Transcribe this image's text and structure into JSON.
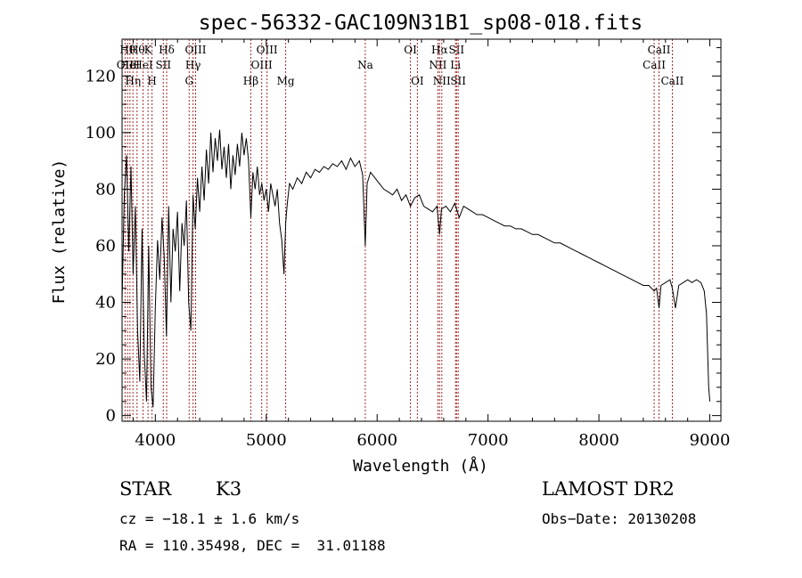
{
  "chart_data": {
    "type": "line",
    "title": "spec-56332-GAC109N31B1_sp08-018.fits",
    "xlabel": "Wavelength (Å)",
    "ylabel": "Flux (relative)",
    "xlim": [
      3700,
      9100
    ],
    "ylim": [
      -2,
      133
    ],
    "xticks": [
      4000,
      5000,
      6000,
      7000,
      8000,
      9000
    ],
    "yticks": [
      0,
      20,
      40,
      60,
      80,
      100,
      120
    ],
    "grid": false,
    "line_color": "#000000",
    "marker_color": "#a52a2a",
    "series": [
      {
        "x": [
          3700,
          3720,
          3740,
          3760,
          3780,
          3800,
          3820,
          3840,
          3860,
          3880,
          3900,
          3920,
          3940,
          3960,
          3980,
          4000,
          4020,
          4040,
          4060,
          4080,
          4100,
          4120,
          4140,
          4160,
          4180,
          4200,
          4220,
          4240,
          4260,
          4280,
          4300,
          4320,
          4340,
          4360,
          4380,
          4400,
          4420,
          4440,
          4460,
          4480,
          4500,
          4520,
          4540,
          4560,
          4580,
          4600,
          4620,
          4640,
          4660,
          4680,
          4700,
          4720,
          4740,
          4760,
          4780,
          4800,
          4820,
          4840,
          4861,
          4880,
          4900,
          4920,
          4940,
          4960,
          4980,
          5000,
          5020,
          5040,
          5060,
          5080,
          5100,
          5120,
          5140,
          5160,
          5175,
          5190,
          5210,
          5240,
          5280,
          5320,
          5360,
          5400,
          5440,
          5480,
          5520,
          5560,
          5600,
          5640,
          5680,
          5720,
          5760,
          5800,
          5840,
          5870,
          5893,
          5910,
          5940,
          5980,
          6020,
          6060,
          6100,
          6140,
          6180,
          6220,
          6260,
          6300,
          6340,
          6380,
          6420,
          6460,
          6500,
          6540,
          6563,
          6580,
          6620,
          6660,
          6700,
          6740,
          6780,
          6820,
          6860,
          6900,
          6950,
          7000,
          7050,
          7100,
          7150,
          7200,
          7250,
          7300,
          7350,
          7400,
          7450,
          7500,
          7550,
          7600,
          7650,
          7700,
          7750,
          7800,
          7850,
          7900,
          7950,
          8000,
          8050,
          8100,
          8150,
          8200,
          8250,
          8300,
          8350,
          8400,
          8450,
          8498,
          8520,
          8542,
          8560,
          8600,
          8640,
          8662,
          8690,
          8720,
          8760,
          8800,
          8840,
          8880,
          8920,
          8950,
          8970,
          8990,
          9000
        ],
        "y": [
          40,
          78,
          92,
          58,
          88,
          50,
          74,
          30,
          12,
          66,
          22,
          5,
          60,
          10,
          3,
          38,
          62,
          48,
          70,
          56,
          28,
          74,
          40,
          66,
          58,
          72,
          44,
          68,
          60,
          76,
          40,
          30,
          78,
          66,
          84,
          72,
          88,
          76,
          94,
          82,
          100,
          86,
          98,
          90,
          101,
          87,
          95,
          84,
          96,
          80,
          92,
          85,
          96,
          88,
          100,
          92,
          98,
          90,
          70,
          86,
          80,
          88,
          78,
          82,
          76,
          80,
          72,
          82,
          78,
          74,
          80,
          68,
          62,
          50,
          68,
          75,
          82,
          80,
          84,
          82,
          86,
          84,
          87,
          86,
          88,
          87,
          89,
          88,
          90,
          87,
          91,
          88,
          90,
          85,
          60,
          82,
          86,
          84,
          82,
          80,
          79,
          78,
          80,
          76,
          78,
          74,
          77,
          78,
          74,
          73,
          72,
          74,
          64,
          73,
          74,
          72,
          75,
          70,
          74,
          73,
          72,
          71,
          71,
          70,
          69,
          68,
          67,
          67,
          66,
          66,
          65,
          64,
          64,
          63,
          62,
          61,
          61,
          60,
          59,
          58,
          57,
          56,
          55,
          54,
          53,
          52,
          51,
          50,
          49,
          48,
          47,
          46,
          46,
          44,
          45,
          38,
          46,
          47,
          48,
          45,
          38,
          46,
          47,
          48,
          47,
          48,
          47,
          44,
          36,
          10,
          5
        ]
      }
    ],
    "line_markers": [
      {
        "x": 3727,
        "labels": [
          "OII"
        ],
        "tier": 2
      },
      {
        "x": 3750,
        "labels": [
          "Hθ"
        ],
        "tier": 1
      },
      {
        "x": 3771,
        "labels": [
          "HeI"
        ],
        "tier": 2
      },
      {
        "x": 3798,
        "labels": [
          "Hη"
        ],
        "tier": 3
      },
      {
        "x": 3835,
        "labels": [
          "Hθ"
        ],
        "tier": 1
      },
      {
        "x": 3889,
        "labels": [
          "HeI"
        ],
        "tier": 2
      },
      {
        "x": 3934,
        "labels": [
          "K"
        ],
        "tier": 1
      },
      {
        "x": 3970,
        "labels": [
          "H"
        ],
        "tier": 3
      },
      {
        "x": 4072,
        "labels": [
          "SII"
        ],
        "tier": 2
      },
      {
        "x": 4102,
        "labels": [
          "Hδ"
        ],
        "tier": 1
      },
      {
        "x": 4305,
        "labels": [
          "G"
        ],
        "tier": 3
      },
      {
        "x": 4340,
        "labels": [
          "Hγ"
        ],
        "tier": 2
      },
      {
        "x": 4363,
        "labels": [
          "OIII"
        ],
        "tier": 1
      },
      {
        "x": 4861,
        "labels": [
          "Hβ"
        ],
        "tier": 3
      },
      {
        "x": 4959,
        "labels": [
          "OIII"
        ],
        "tier": 2
      },
      {
        "x": 5007,
        "labels": [
          "OIII"
        ],
        "tier": 1
      },
      {
        "x": 5175,
        "labels": [
          "Mg"
        ],
        "tier": 3
      },
      {
        "x": 5893,
        "labels": [
          "Na"
        ],
        "tier": 2
      },
      {
        "x": 6300,
        "labels": [
          "OI"
        ],
        "tier": 1
      },
      {
        "x": 6363,
        "labels": [
          "OI"
        ],
        "tier": 3
      },
      {
        "x": 6548,
        "labels": [
          "NII"
        ],
        "tier": 2
      },
      {
        "x": 6563,
        "labels": [
          "Hα"
        ],
        "tier": 1
      },
      {
        "x": 6583,
        "labels": [
          "NII"
        ],
        "tier": 3
      },
      {
        "x": 6707,
        "labels": [
          "Li"
        ],
        "tier": 2
      },
      {
        "x": 6716,
        "labels": [
          "SII"
        ],
        "tier": 1
      },
      {
        "x": 6731,
        "labels": [
          "SII"
        ],
        "tier": 3
      },
      {
        "x": 8498,
        "labels": [
          "CaII"
        ],
        "tier": 2
      },
      {
        "x": 8542,
        "labels": [
          "CaII"
        ],
        "tier": 1
      },
      {
        "x": 8662,
        "labels": [
          "CaII"
        ],
        "tier": 3
      }
    ]
  },
  "footer": {
    "class_label": "STAR",
    "subclass_label": "K3",
    "redshift_text": "cz = −18.1 ± 1.6 km/s",
    "coords_text": "RA = 110.35498, DEC =  31.01188",
    "survey_label": "LAMOST DR2",
    "obs_date_text": "Obs−Date: 20130208"
  }
}
